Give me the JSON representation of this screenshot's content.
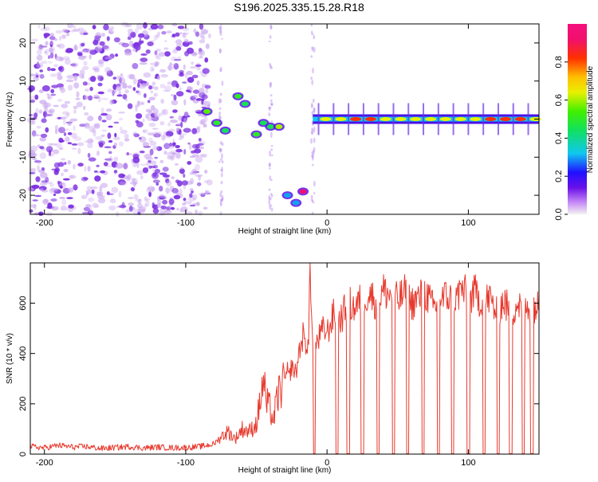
{
  "title": "S196.2025.335.15.28.R18",
  "colors": {
    "snr_line": "#e83a2e",
    "scatter": "#7a2de0",
    "background": "#ffffff",
    "frame": "#000000"
  },
  "chart_data": [
    {
      "type": "heatmap",
      "name": "spectrogram",
      "xlabel": "Height of straight line (km)",
      "ylabel": "Frequency (Hz)",
      "xlim": [
        -210,
        150
      ],
      "ylim": [
        -25,
        25
      ],
      "xticks": [
        -200,
        -100,
        0,
        100
      ],
      "xtick_labels": [
        "-200",
        "-100",
        "0",
        "100"
      ],
      "yticks": [
        -20,
        -10,
        0,
        10,
        20
      ],
      "ytick_labels": [
        "-20",
        "-10",
        "0",
        "10",
        "20"
      ],
      "colorbar": {
        "label": "Normalized spectral amplitude",
        "range": [
          0,
          1
        ],
        "ticks": [
          0.0,
          0.2,
          0.4,
          0.6,
          0.8
        ],
        "tick_labels": [
          "0.0",
          "0.2",
          "0.4",
          "0.6",
          "0.8"
        ]
      },
      "features": [
        {
          "name": "noise-region",
          "x_range": [
            -210,
            -95
          ],
          "amplitude": 0.15
        },
        {
          "name": "signal-blob",
          "x": -85,
          "y": 2,
          "amplitude": 0.55
        },
        {
          "name": "signal-blob",
          "x": -78,
          "y": -1,
          "amplitude": 0.5
        },
        {
          "name": "signal-blob",
          "x": -72,
          "y": -3,
          "amplitude": 0.45
        },
        {
          "name": "signal-blob",
          "x": -63,
          "y": 6,
          "amplitude": 0.5
        },
        {
          "name": "signal-blob",
          "x": -58,
          "y": 4,
          "amplitude": 0.45
        },
        {
          "name": "signal-blob",
          "x": -50,
          "y": -4,
          "amplitude": 0.5
        },
        {
          "name": "signal-blob",
          "x": -45,
          "y": -1,
          "amplitude": 0.45
        },
        {
          "name": "signal-blob",
          "x": -40,
          "y": -2,
          "amplitude": 0.45
        },
        {
          "name": "signal-blob",
          "x": -34,
          "y": -2,
          "amplitude": 0.6
        },
        {
          "name": "signal-blob",
          "x": -28,
          "y": -20,
          "amplitude": 0.3
        },
        {
          "name": "signal-blob",
          "x": -22,
          "y": -22,
          "amplitude": 0.3
        },
        {
          "name": "signal-blob",
          "x": -17,
          "y": -19,
          "amplitude": 0.95
        },
        {
          "name": "carrier-band",
          "x_range": [
            -10,
            150
          ],
          "y": 0,
          "amplitude": 0.9
        }
      ]
    },
    {
      "type": "line",
      "name": "snr",
      "xlabel": "Height of straight line (km)",
      "ylabel": "SNR (10 * v/v)",
      "xlim": [
        -210,
        150
      ],
      "ylim": [
        0,
        760
      ],
      "xticks": [
        -200,
        -100,
        0,
        100
      ],
      "xtick_labels": [
        "-200",
        "-100",
        "0",
        "100"
      ],
      "yticks": [
        0,
        200,
        400,
        600
      ],
      "ytick_labels": [
        "0",
        "200",
        "400",
        "600"
      ],
      "x": [
        -210,
        -200,
        -190,
        -180,
        -170,
        -160,
        -150,
        -140,
        -130,
        -120,
        -110,
        -100,
        -90,
        -80,
        -75,
        -70,
        -65,
        -60,
        -55,
        -50,
        -47,
        -45,
        -43,
        -40,
        -38,
        -35,
        -32,
        -30,
        -28,
        -25,
        -22,
        -20,
        -17,
        -15,
        -13,
        -12,
        -11,
        -10,
        -8,
        -5,
        -2,
        0,
        5,
        10,
        15,
        20,
        25,
        30,
        35,
        40,
        45,
        50,
        55,
        60,
        65,
        70,
        75,
        80,
        85,
        90,
        95,
        100,
        105,
        110,
        115,
        120,
        125,
        130,
        135,
        140,
        145,
        150
      ],
      "values": [
        30,
        25,
        35,
        28,
        30,
        22,
        26,
        30,
        24,
        28,
        25,
        26,
        30,
        40,
        70,
        90,
        60,
        100,
        90,
        120,
        220,
        300,
        200,
        180,
        130,
        230,
        270,
        310,
        280,
        350,
        320,
        400,
        470,
        420,
        480,
        760,
        500,
        460,
        430,
        470,
        500,
        480,
        560,
        540,
        600,
        580,
        620,
        640,
        600,
        650,
        630,
        610,
        640,
        600,
        620,
        640,
        580,
        610,
        630,
        600,
        660,
        620,
        640,
        600,
        620,
        560,
        610,
        560,
        600,
        560,
        600,
        580
      ],
      "dropouts": [
        -9,
        7,
        15,
        25,
        36,
        47,
        57,
        68,
        79,
        89,
        100,
        111,
        121,
        130,
        139,
        145
      ]
    }
  ]
}
